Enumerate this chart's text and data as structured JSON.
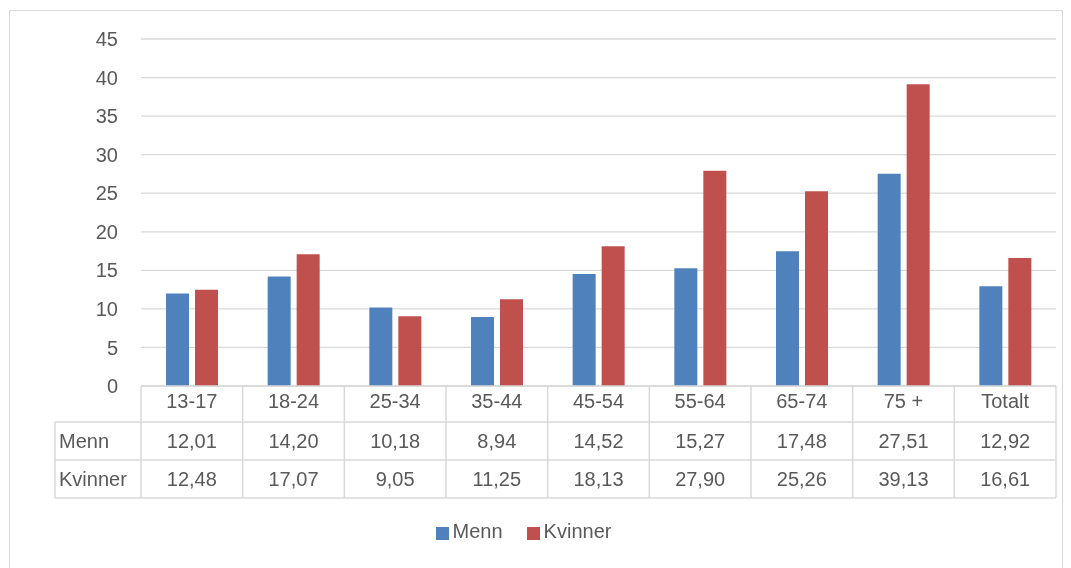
{
  "chart_data": {
    "type": "bar",
    "categories": [
      "13-17",
      "18-24",
      "25-34",
      "35-44",
      "45-54",
      "55-64",
      "65-74",
      "75 +",
      "Totalt"
    ],
    "series": [
      {
        "name": "Menn",
        "color": "#4f81bd",
        "values": [
          12.01,
          14.2,
          10.18,
          8.94,
          14.52,
          15.27,
          17.48,
          27.51,
          12.92
        ],
        "value_labels": [
          "12,01",
          "14,20",
          "10,18",
          "8,94",
          "14,52",
          "15,27",
          "17,48",
          "27,51",
          "12,92"
        ]
      },
      {
        "name": "Kvinner",
        "color": "#c0504d",
        "values": [
          12.48,
          17.07,
          9.05,
          11.25,
          18.13,
          27.9,
          25.26,
          39.13,
          16.61
        ],
        "value_labels": [
          "12,48",
          "17,07",
          "9,05",
          "11,25",
          "18,13",
          "27,90",
          "25,26",
          "39,13",
          "16,61"
        ]
      }
    ],
    "ylim": [
      0,
      45
    ],
    "yticks": [
      0,
      5,
      10,
      15,
      20,
      25,
      30,
      35,
      40,
      45
    ],
    "grid": "y",
    "legend": "bottom"
  }
}
